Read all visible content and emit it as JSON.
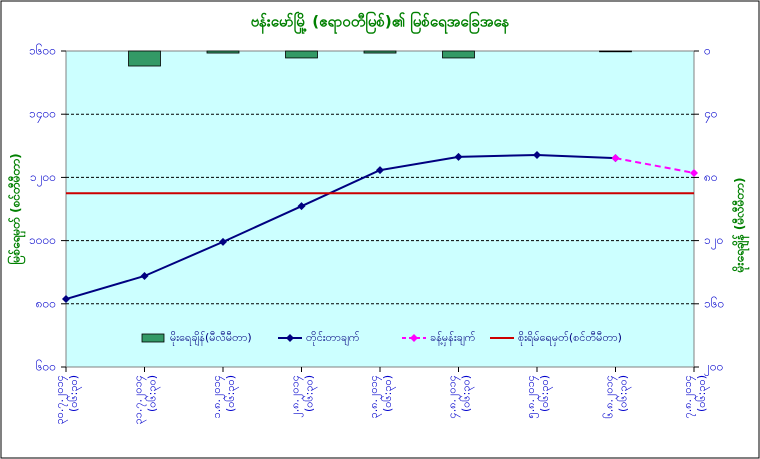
{
  "chart_data": {
    "type": "combo",
    "title": "ဗန်းမော်မြို့ (ဧရာဝတီမြစ်)၏ မြစ်ရေအခြေအနေ",
    "y_label": "မြစ်ရေမှတ် (စင်တီမီတာ)",
    "y2_label": "မိုးရေချိန် (မီလီမီတာ)",
    "categories": [
      "၃၀.၇.၂၀၁၄",
      "၃၁.၇.၂၀၁၄",
      "၁.၈.၂၀၁၄",
      "၂.၈.၂၀၁၄",
      "၃.၈.၂၀၁၄",
      "၄.၈.၂၀၁၄",
      "၅.၈.၂၀၁၄",
      "၆.၈.၂၀၁၄",
      "၇.၈.၂၀၁၄"
    ],
    "category_times": [
      "(၀၆:၃၀)",
      "(၀၆:၃၀)",
      "(၀၆:၃၀)",
      "(၀၆:၃၀)",
      "(၀၆:၃၀)",
      "(၀၆:၃၀)",
      "(၀၆:၃၀)",
      "(၀၆:၃၀)",
      "(၀၆:၃၀)"
    ],
    "ylim": [
      600,
      1600
    ],
    "yticks": [
      {
        "value": 600,
        "label": "၆၀၀"
      },
      {
        "value": 800,
        "label": "၈၀၀"
      },
      {
        "value": 1000,
        "label": "၁၀၀၀"
      },
      {
        "value": 1200,
        "label": "၁၂၀၀"
      },
      {
        "value": 1400,
        "label": "၁၄၀၀"
      },
      {
        "value": 1600,
        "label": "၁၆၀၀"
      }
    ],
    "y2lim": [
      200,
      0
    ],
    "y2ticks": [
      {
        "value": 0,
        "label": "၀"
      },
      {
        "value": 40,
        "label": "၄၀"
      },
      {
        "value": 80,
        "label": "၈၀"
      },
      {
        "value": 120,
        "label": "၁၂၀"
      },
      {
        "value": 160,
        "label": "၁၆၀"
      },
      {
        "value": 200,
        "label": "၂၀၀"
      }
    ],
    "grid": true,
    "series": [
      {
        "name": "မိုးရေချိန်(မီလီမီတာ)",
        "kind": "bar",
        "axis": "y2",
        "color": "#339966",
        "values": [
          0,
          9.5,
          1.3,
          4.4,
          1.3,
          4.4,
          0,
          0.5,
          0
        ]
      },
      {
        "name": "တိုင်းတာချက်",
        "kind": "line",
        "color": "#000080",
        "values": [
          815,
          888,
          996,
          1109,
          1223,
          1265,
          1271,
          1261,
          null
        ]
      },
      {
        "name": "ခန့်မှန်းချက်",
        "kind": "dashed",
        "color": "#ff00ff",
        "values": [
          null,
          null,
          null,
          null,
          null,
          null,
          null,
          1261,
          1214
        ]
      },
      {
        "name": "စိုးရိမ်ရေမှတ်(စင်တီမီတာ)",
        "kind": "hline",
        "color": "#cc0000",
        "value": 1150
      }
    ]
  }
}
